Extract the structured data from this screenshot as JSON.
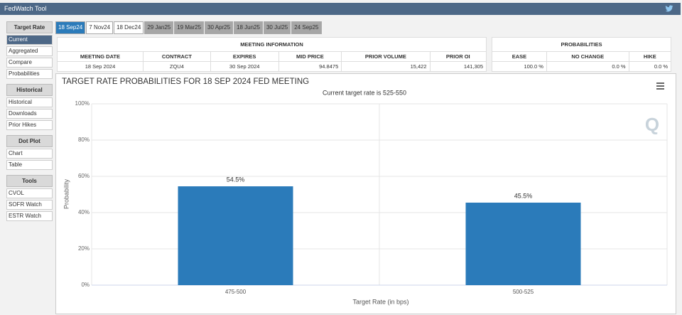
{
  "header": {
    "title": "FedWatch Tool"
  },
  "sidebar": {
    "sections": [
      {
        "title": "Target Rate",
        "items": [
          "Current",
          "Aggregated",
          "Compare",
          "Probabilities"
        ]
      },
      {
        "title": "Historical",
        "items": [
          "Historical",
          "Downloads",
          "Prior Hikes"
        ]
      },
      {
        "title": "Dot Plot",
        "items": [
          "Chart",
          "Table"
        ]
      },
      {
        "title": "Tools",
        "items": [
          "CVOL",
          "SOFR Watch",
          "ESTR Watch"
        ]
      }
    ]
  },
  "tabs": [
    "18 Sep24",
    "7 Nov24",
    "18 Dec24",
    "29 Jan25",
    "19 Mar25",
    "30 Apr25",
    "18 Jun25",
    "30 Jul25",
    "24 Sep25"
  ],
  "meeting_info": {
    "title": "MEETING INFORMATION",
    "columns": [
      "MEETING DATE",
      "CONTRACT",
      "EXPIRES",
      "MID PRICE",
      "PRIOR VOLUME",
      "PRIOR OI"
    ],
    "row": [
      "18 Sep 2024",
      "ZQU4",
      "30 Sep 2024",
      "94.8475",
      "15,422",
      "141,305"
    ]
  },
  "probabilities": {
    "title": "PROBABILITIES",
    "columns": [
      "EASE",
      "NO CHANGE",
      "HIKE"
    ],
    "row": [
      "100.0 %",
      "0.0 %",
      "0.0 %"
    ]
  },
  "chart_data": {
    "type": "bar",
    "title": "TARGET RATE PROBABILITIES FOR 18 SEP 2024 FED MEETING",
    "subtitle": "Current target rate is 525-550",
    "categories": [
      "475-500",
      "500-525"
    ],
    "values": [
      54.5,
      45.5
    ],
    "value_labels": [
      "54.5%",
      "45.5%"
    ],
    "color": "#2b7bba",
    "x_label": "Target Rate (in bps)",
    "y_label": "Probability",
    "ylim": [
      0,
      100
    ],
    "yticks": [
      {
        "value": 0,
        "label": "0%"
      },
      {
        "value": 20,
        "label": "20%"
      },
      {
        "value": 40,
        "label": "40%"
      },
      {
        "value": 60,
        "label": "60%"
      },
      {
        "value": 80,
        "label": "80%"
      },
      {
        "value": 100,
        "label": "100%"
      }
    ],
    "grid": true
  }
}
